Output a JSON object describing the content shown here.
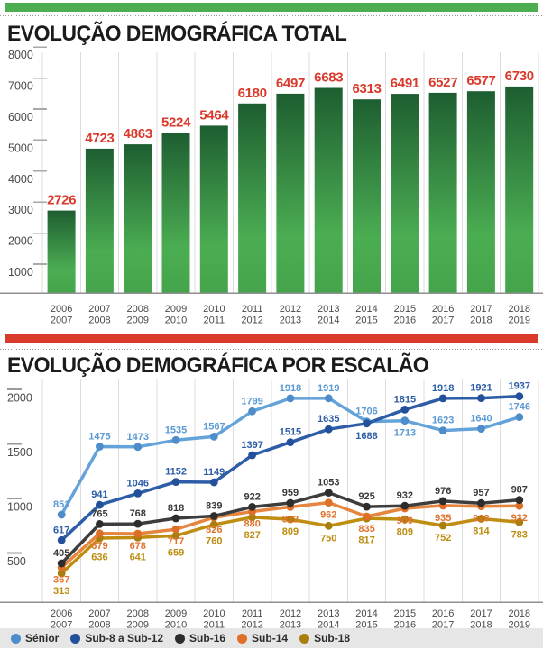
{
  "accents": {
    "top_strip_color": "#4cae51",
    "middle_strip_color": "#d93a2b",
    "legend_bg": "#e6e6e6"
  },
  "chart_data": [
    {
      "type": "bar",
      "title": "EVOLUÇÃO DEMOGRÁFICA TOTAL",
      "categories": [
        [
          "2006",
          "2007"
        ],
        [
          "2007",
          "2008"
        ],
        [
          "2008",
          "2009"
        ],
        [
          "2009",
          "2010"
        ],
        [
          "2010",
          "2011"
        ],
        [
          "2011",
          "2012"
        ],
        [
          "2012",
          "2013"
        ],
        [
          "2013",
          "2014"
        ],
        [
          "2014",
          "2015"
        ],
        [
          "2015",
          "2016"
        ],
        [
          "2016",
          "2017"
        ],
        [
          "2017",
          "2018"
        ],
        [
          "2018",
          "2019"
        ]
      ],
      "values": [
        2726,
        4723,
        4863,
        5224,
        5464,
        6180,
        6497,
        6683,
        6313,
        6491,
        6527,
        6577,
        6730
      ],
      "yticks": [
        8000,
        7000,
        6000,
        5000,
        4000,
        3000,
        2000,
        1000
      ],
      "ylim": [
        0,
        8000
      ],
      "grid": "vertical-only",
      "value_label_color": "#d93a2b",
      "bar_gradient_top": "#1e5e31",
      "bar_gradient_mid": "#4bad52",
      "bar_gradient_bottom": "#45a44b"
    },
    {
      "type": "line",
      "title": "EVOLUÇÃO DEMOGRÁFICA POR ESCALÃO",
      "categories": [
        [
          "2006",
          "2007"
        ],
        [
          "2007",
          "2008"
        ],
        [
          "2008",
          "2009"
        ],
        [
          "2009",
          "2010"
        ],
        [
          "2010",
          "2011"
        ],
        [
          "2011",
          "2012"
        ],
        [
          "2012",
          "2013"
        ],
        [
          "2013",
          "2014"
        ],
        [
          "2014",
          "2015"
        ],
        [
          "2015",
          "2016"
        ],
        [
          "2016",
          "2017"
        ],
        [
          "2017",
          "2018"
        ],
        [
          "2018",
          "2019"
        ]
      ],
      "yticks": [
        2000,
        1500,
        1000,
        500
      ],
      "ylim": [
        0,
        2000
      ],
      "grid": "vertical-only",
      "legend_position": "bottom",
      "series": [
        {
          "name": "Sénior",
          "line_color": "#64a3da",
          "marker_color": "#4e8dca",
          "label_color": "#5b9bd5",
          "values": [
            851,
            1475,
            1473,
            1535,
            1567,
            1799,
            1918,
            1919,
            1706,
            1713,
            1623,
            1640,
            1746
          ]
        },
        {
          "name": "Sub-8 a Sub-12",
          "line_color": "#2d5da7",
          "marker_color": "#23509b",
          "label_color": "#2d5da7",
          "values": [
            617,
            941,
            1046,
            1152,
            1149,
            1397,
            1515,
            1635,
            1688,
            1815,
            1918,
            1921,
            1937
          ]
        },
        {
          "name": "Sub-16",
          "line_color": "#3d3d3d",
          "marker_color": "#2d2d2d",
          "label_color": "#3a3a3a",
          "values": [
            405,
            765,
            768,
            818,
            839,
            922,
            959,
            1053,
            925,
            932,
            976,
            957,
            987
          ]
        },
        {
          "name": "Sub-14",
          "line_color": "#e6853e",
          "marker_color": "#dd6f28",
          "label_color": "#e0722c",
          "values": [
            367,
            679,
            678,
            717,
            826,
            880,
            922,
            962,
            835,
            909,
            935,
            928,
            932
          ]
        },
        {
          "name": "Sub-18",
          "line_color": "#bf8e10",
          "marker_color": "#aa7e0d",
          "label_color": "#bd8d10",
          "values": [
            313,
            636,
            641,
            659,
            760,
            827,
            809,
            750,
            817,
            809,
            752,
            814,
            783
          ]
        }
      ]
    }
  ]
}
